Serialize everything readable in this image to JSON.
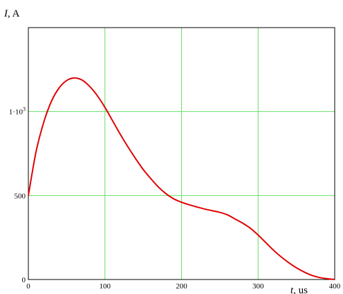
{
  "chart_data": {
    "type": "line",
    "title": "",
    "ylabel": {
      "symbol": "I",
      "rest": ", A"
    },
    "xlabel": {
      "symbol": "t",
      "rest": ", us"
    },
    "xlim": [
      0,
      400
    ],
    "ylim": [
      0,
      1500
    ],
    "grid": true,
    "x_ticks": [
      {
        "value": 0,
        "label": "0"
      },
      {
        "value": 100,
        "label": "100"
      },
      {
        "value": 200,
        "label": "200"
      },
      {
        "value": 300,
        "label": "300"
      },
      {
        "value": 400,
        "label": "400"
      }
    ],
    "y_ticks": [
      {
        "value": 0,
        "label": "0"
      },
      {
        "value": 500,
        "label": "500"
      },
      {
        "value": 1000,
        "label_base": "1·10",
        "label_exp": "3"
      }
    ],
    "series": [
      {
        "color": "#e00000",
        "x": [
          0,
          10,
          20,
          30,
          40,
          50,
          60,
          70,
          80,
          90,
          100,
          110,
          120,
          130,
          140,
          150,
          160,
          170,
          180,
          190,
          200,
          210,
          220,
          230,
          240,
          250,
          260,
          270,
          280,
          290,
          300,
          310,
          320,
          330,
          340,
          350,
          360,
          370,
          380,
          390,
          400
        ],
        "y": [
          500,
          760,
          935,
          1060,
          1140,
          1185,
          1200,
          1188,
          1150,
          1095,
          1025,
          945,
          865,
          790,
          720,
          655,
          600,
          550,
          510,
          480,
          460,
          445,
          432,
          420,
          410,
          400,
          385,
          360,
          335,
          305,
          265,
          220,
          175,
          135,
          100,
          70,
          45,
          25,
          12,
          5,
          0
        ]
      }
    ]
  },
  "colors": {
    "grid": "#66dd66",
    "curve": "#e00000",
    "frame": "#000000"
  }
}
